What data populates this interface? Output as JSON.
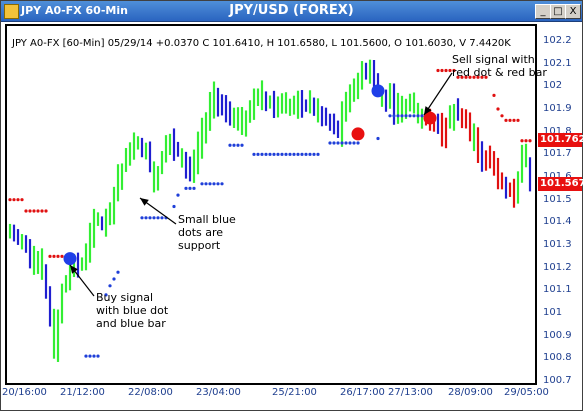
{
  "window": {
    "app_title": "JPY A0-FX 60-Min",
    "chart_title": "JPY/USD (FOREX)",
    "controls": [
      "_",
      "□",
      "X"
    ]
  },
  "header_info": "JPY A0-FX [60-Min] 05/29/14  +0.0370 C 101.6410, H 101.6580, L 101.5600, O 101.6030, V 7.4420K",
  "annotations": {
    "sell": [
      "Sell signal with",
      "red dot & red bar"
    ],
    "support": [
      "Small blue",
      "dots are",
      "support"
    ],
    "buy": [
      "Buy signal",
      "with blue dot",
      "and blue bar"
    ]
  },
  "colors": {
    "up_bar": "#33ee33",
    "down_bar": "#1f1fd0",
    "sell_bar": "#e01010",
    "support_dot": "#1f3fd8",
    "resistance_dot": "#e01010",
    "buy_signal": "#1f3fe8",
    "sell_signal": "#e81010"
  },
  "price_labels": [
    "101.762",
    "101.567"
  ],
  "chart_data": {
    "type": "ohlc",
    "title": "JPY/USD (FOREX)",
    "x_ticks": [
      "20/16:00",
      "21/12:00",
      "22/08:00",
      "23/04:00",
      "25/21:00",
      "26/17:00",
      "27/13:00",
      "28/09:00",
      "29/05:00"
    ],
    "y_ticks": [
      "102.2",
      "102.1",
      "102",
      "101.9",
      "101.8",
      "101.7",
      "101.6",
      "101.5",
      "101.4",
      "101.3",
      "101.2",
      "101.1",
      "101",
      "100.9",
      "100.8",
      "100.7"
    ],
    "ylim": [
      100.7,
      102.2
    ],
    "bar_count": 131,
    "close_path": [
      [
        0,
        101.35
      ],
      [
        4,
        101.3
      ],
      [
        8,
        101.2
      ],
      [
        11,
        100.85
      ],
      [
        13,
        101.1
      ],
      [
        15,
        101.2
      ],
      [
        18,
        101.22
      ],
      [
        21,
        101.38
      ],
      [
        24,
        101.42
      ],
      [
        27,
        101.6
      ],
      [
        30,
        101.72
      ],
      [
        33,
        101.75
      ],
      [
        36,
        101.6
      ],
      [
        39,
        101.75
      ],
      [
        42,
        101.72
      ],
      [
        45,
        101.62
      ],
      [
        48,
        101.8
      ],
      [
        51,
        101.95
      ],
      [
        54,
        101.9
      ],
      [
        58,
        101.85
      ],
      [
        62,
        101.95
      ],
      [
        66,
        101.92
      ],
      [
        70,
        101.9
      ],
      [
        74,
        101.93
      ],
      [
        78,
        101.87
      ],
      [
        82,
        101.8
      ],
      [
        84,
        101.92
      ],
      [
        86,
        102.02
      ],
      [
        88,
        102.05
      ],
      [
        90,
        102.1
      ],
      [
        92,
        101.97
      ],
      [
        96,
        101.92
      ],
      [
        100,
        101.9
      ],
      [
        103,
        101.86
      ],
      [
        106,
        101.85
      ],
      [
        108,
        101.78
      ],
      [
        111,
        101.9
      ],
      [
        114,
        101.85
      ],
      [
        117,
        101.7
      ],
      [
        120,
        101.68
      ],
      [
        123,
        101.55
      ],
      [
        126,
        101.5
      ],
      [
        128,
        101.75
      ],
      [
        130,
        101.58
      ]
    ],
    "support_dots": [
      [
        19,
        100.81
      ],
      [
        20,
        100.81
      ],
      [
        21,
        100.81
      ],
      [
        22,
        100.81
      ],
      [
        24,
        101.08
      ],
      [
        25,
        101.12
      ],
      [
        26,
        101.15
      ],
      [
        27,
        101.18
      ],
      [
        33,
        101.42
      ],
      [
        34,
        101.42
      ],
      [
        35,
        101.42
      ],
      [
        36,
        101.42
      ],
      [
        37,
        101.42
      ],
      [
        38,
        101.42
      ],
      [
        39,
        101.42
      ],
      [
        41,
        101.47
      ],
      [
        42,
        101.52
      ],
      [
        44,
        101.55
      ],
      [
        45,
        101.55
      ],
      [
        46,
        101.55
      ],
      [
        48,
        101.57
      ],
      [
        49,
        101.57
      ],
      [
        50,
        101.57
      ],
      [
        51,
        101.57
      ],
      [
        52,
        101.57
      ],
      [
        53,
        101.57
      ],
      [
        55,
        101.74
      ],
      [
        56,
        101.74
      ],
      [
        57,
        101.74
      ],
      [
        58,
        101.74
      ],
      [
        61,
        101.7
      ],
      [
        62,
        101.7
      ],
      [
        63,
        101.7
      ],
      [
        64,
        101.7
      ],
      [
        65,
        101.7
      ],
      [
        66,
        101.7
      ],
      [
        67,
        101.7
      ],
      [
        68,
        101.7
      ],
      [
        69,
        101.7
      ],
      [
        70,
        101.7
      ],
      [
        71,
        101.7
      ],
      [
        72,
        101.7
      ],
      [
        73,
        101.7
      ],
      [
        74,
        101.7
      ],
      [
        75,
        101.7
      ],
      [
        76,
        101.7
      ],
      [
        77,
        101.7
      ],
      [
        80,
        101.75
      ],
      [
        81,
        101.75
      ],
      [
        82,
        101.75
      ],
      [
        83,
        101.75
      ],
      [
        84,
        101.75
      ],
      [
        85,
        101.75
      ],
      [
        86,
        101.75
      ],
      [
        87,
        101.75
      ],
      [
        92,
        101.77
      ],
      [
        95,
        101.87
      ],
      [
        96,
        101.87
      ],
      [
        97,
        101.87
      ],
      [
        98,
        101.87
      ],
      [
        99,
        101.87
      ],
      [
        100,
        101.87
      ],
      [
        101,
        101.87
      ],
      [
        102,
        101.87
      ],
      [
        103,
        101.87
      ],
      [
        104,
        101.87
      ],
      [
        105,
        101.87
      ],
      [
        106,
        101.87
      ]
    ],
    "resistance_dots": [
      [
        0,
        101.5
      ],
      [
        1,
        101.5
      ],
      [
        2,
        101.5
      ],
      [
        3,
        101.5
      ],
      [
        4,
        101.45
      ],
      [
        5,
        101.45
      ],
      [
        6,
        101.45
      ],
      [
        7,
        101.45
      ],
      [
        8,
        101.45
      ],
      [
        9,
        101.45
      ],
      [
        10,
        101.25
      ],
      [
        11,
        101.25
      ],
      [
        12,
        101.25
      ],
      [
        13,
        101.25
      ],
      [
        87,
        101.78
      ],
      [
        107,
        102.07
      ],
      [
        108,
        102.07
      ],
      [
        109,
        102.07
      ],
      [
        110,
        102.07
      ],
      [
        111,
        102.07
      ],
      [
        112,
        102.04
      ],
      [
        113,
        102.04
      ],
      [
        114,
        102.04
      ],
      [
        115,
        102.04
      ],
      [
        116,
        102.04
      ],
      [
        117,
        102.04
      ],
      [
        118,
        102.04
      ],
      [
        119,
        102.04
      ],
      [
        121,
        101.96
      ],
      [
        122,
        101.9
      ],
      [
        123,
        101.87
      ],
      [
        124,
        101.85
      ],
      [
        125,
        101.85
      ],
      [
        126,
        101.85
      ],
      [
        127,
        101.85
      ],
      [
        128,
        101.76
      ],
      [
        129,
        101.76
      ],
      [
        130,
        101.76
      ]
    ],
    "buy_signals": [
      [
        15,
        101.24
      ],
      [
        92,
        101.98
      ]
    ],
    "sell_signals": [
      [
        87,
        101.79
      ],
      [
        105,
        101.86
      ]
    ],
    "sell_bar_range": [
      104,
      130
    ]
  }
}
